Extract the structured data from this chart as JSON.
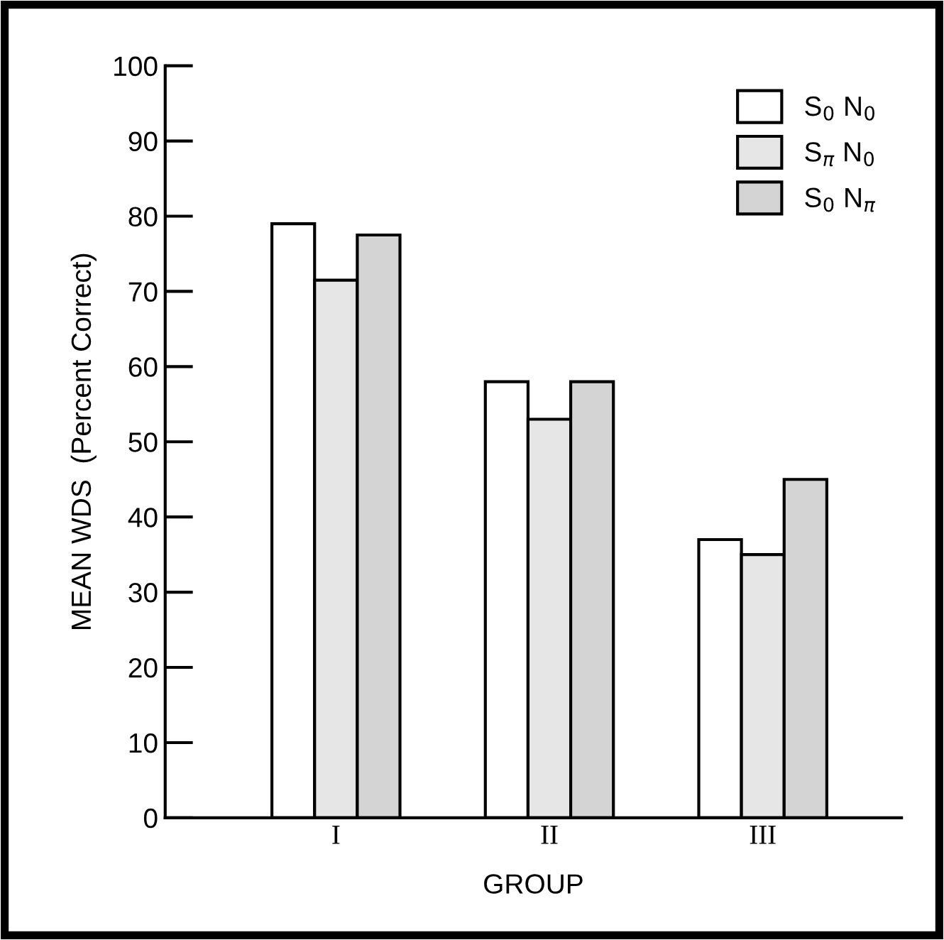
{
  "chart_data": {
    "type": "bar",
    "xlabel": "GROUP",
    "ylabel": "MEAN WDS  (Percent Correct)",
    "categories": [
      "I",
      "II",
      "III"
    ],
    "series": [
      {
        "name": "S$_{0}$ N$_{0}$",
        "color": "#ffffff",
        "values": [
          79,
          58,
          37
        ]
      },
      {
        "name": "S$_{π}$ N$_{0}$",
        "color": "#e6e6e6",
        "values": [
          71.5,
          53,
          35
        ]
      },
      {
        "name": "S$_{0}$ N$_{π}$",
        "color": "#d4d4d4",
        "values": [
          77.5,
          58,
          45
        ]
      }
    ],
    "ylim": [
      0,
      100
    ],
    "yticks": [
      0,
      10,
      20,
      30,
      40,
      50,
      60,
      70,
      80,
      90,
      100
    ],
    "grid": false,
    "legend": "top right"
  }
}
